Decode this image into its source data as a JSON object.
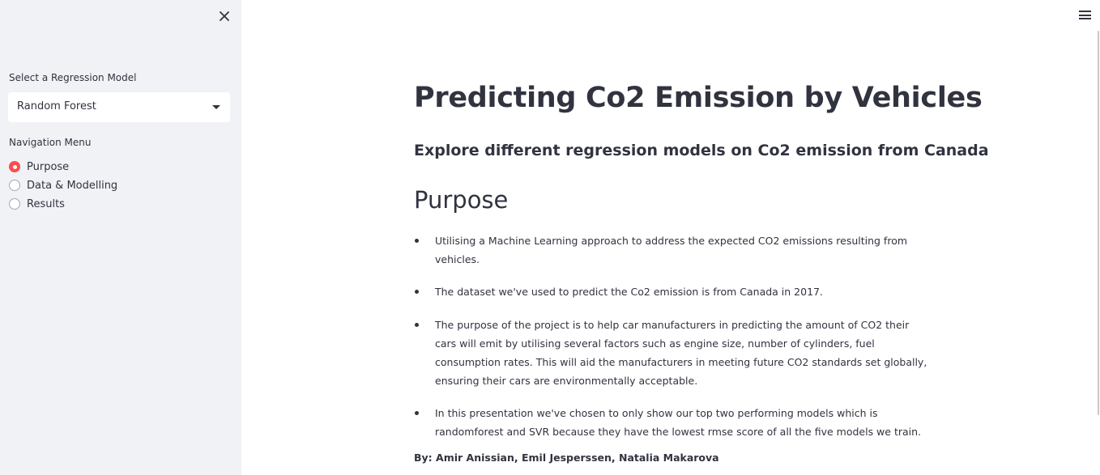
{
  "sidebar": {
    "model_select": {
      "label": "Select a Regression Model",
      "value": "Random Forest"
    },
    "navigation": {
      "label": "Navigation Menu",
      "options": [
        {
          "label": "Purpose",
          "selected": true
        },
        {
          "label": "Data & Modelling",
          "selected": false
        },
        {
          "label": "Results",
          "selected": false
        }
      ]
    }
  },
  "main": {
    "title": "Predicting Co2 Emission by Vehicles",
    "subtitle": "Explore different regression models on Co2 emission from Canada",
    "section_title": "Purpose",
    "bullets": [
      "Utilising a Machine Learning approach to address the expected CO2 emissions resulting from vehicles.",
      "The dataset we've used to predict the Co2 emission is from Canada in 2017.",
      "The purpose of the project is to help car manufacturers in predicting the amount of CO2 their cars will emit by utilising several factors such as engine size, number of cylinders, fuel consumption rates. This will aid the manufacturers in meeting future CO2 standards set globally, ensuring their cars are environmentally acceptable.",
      "In this presentation we've chosen to only show our top two performing models which is randomforest and SVR because they have the lowest rmse score of all the five models we train."
    ],
    "authors": "By: Amir Anissian, Emil Jesperssen, Natalia Makarova"
  },
  "colors": {
    "sidebar_bg": "#f0f2f6",
    "accent": "#ff4b4b",
    "text": "#31333f"
  },
  "icons": {
    "sidebar_close": "close-icon",
    "main_menu": "hamburger-menu-icon",
    "select_caret": "chevron-down-icon"
  }
}
